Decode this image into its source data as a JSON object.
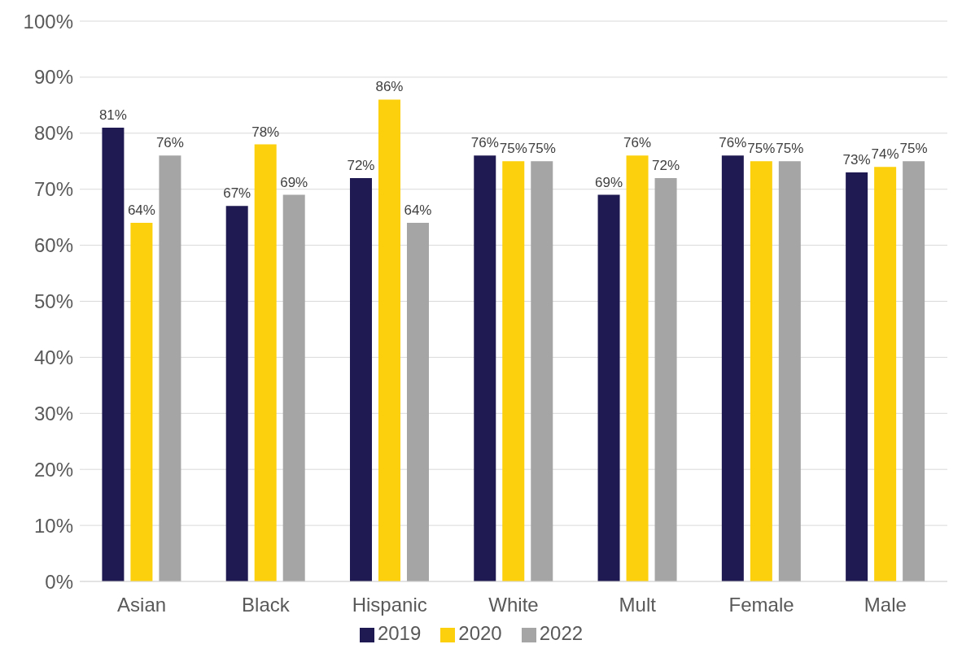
{
  "chart_data": {
    "type": "bar",
    "categories": [
      "Asian",
      "Black",
      "Hispanic",
      "White",
      "Mult",
      "Female",
      "Male"
    ],
    "series": [
      {
        "name": "2019",
        "color": "#201a52",
        "values": [
          81,
          67,
          72,
          76,
          69,
          76,
          73
        ],
        "value_labels": [
          "81%",
          "67%",
          "72%",
          "76%",
          "69%",
          "76%",
          "73%"
        ]
      },
      {
        "name": "2020",
        "color": "#fcd00c",
        "values": [
          64,
          78,
          86,
          75,
          76,
          75,
          74
        ],
        "value_labels": [
          "64%",
          "78%",
          "86%",
          "75%",
          "76%",
          "75%",
          "74%"
        ]
      },
      {
        "name": "2022",
        "color": "#a5a5a5",
        "values": [
          76,
          69,
          64,
          75,
          72,
          75,
          75
        ],
        "value_labels": [
          "76%",
          "69%",
          "64%",
          "75%",
          "72%",
          "75%",
          "75%"
        ]
      }
    ],
    "ylim": [
      0,
      100
    ],
    "yticks": [
      {
        "value": 0,
        "label": "0%"
      },
      {
        "value": 10,
        "label": "10%"
      },
      {
        "value": 20,
        "label": "20%"
      },
      {
        "value": 30,
        "label": "30%"
      },
      {
        "value": 40,
        "label": "40%"
      },
      {
        "value": 50,
        "label": "50%"
      },
      {
        "value": 60,
        "label": "60%"
      },
      {
        "value": 70,
        "label": "70%"
      },
      {
        "value": 80,
        "label": "80%"
      },
      {
        "value": 90,
        "label": "90%"
      },
      {
        "value": 100,
        "label": "100%"
      }
    ],
    "grid": "y",
    "legend": "bottom"
  }
}
